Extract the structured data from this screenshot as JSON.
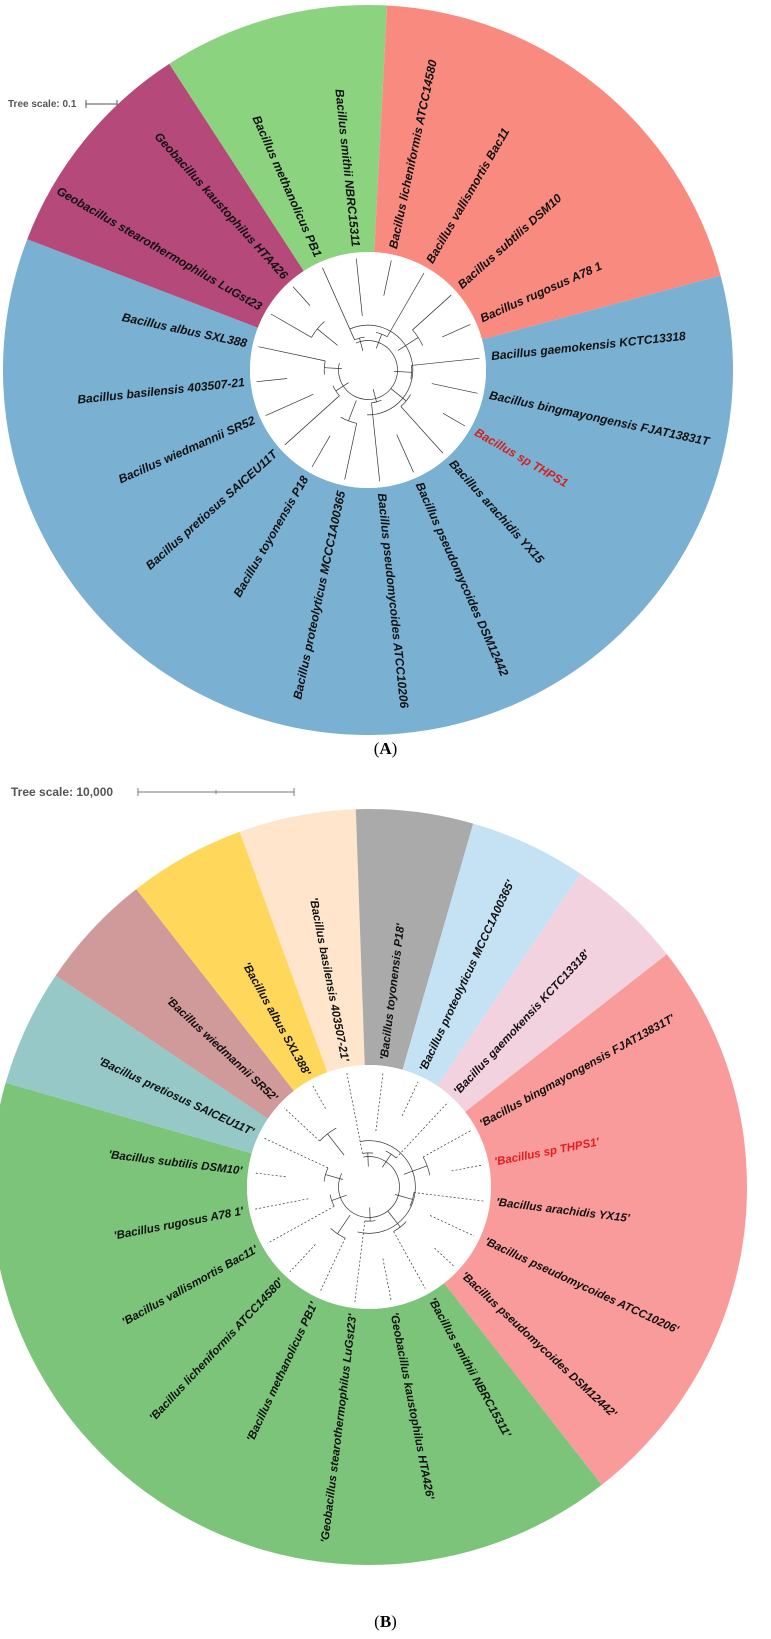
{
  "panels": [
    {
      "id": "A",
      "caption_open": "(",
      "caption_letter": "A",
      "caption_close": ")",
      "scale_label": "Tree scale: 0.1",
      "sectors": [
        {
          "color": "#8cd37f",
          "tips": [
            {
              "label": "Bacillus methanolicus PB1",
              "color": "#111111"
            },
            {
              "label": "Bacillus smithii NBRC15311",
              "color": "#111111"
            }
          ]
        },
        {
          "color": "#f98a80",
          "tips": [
            {
              "label": "Bacillus licheniformis ATCC14580",
              "color": "#111111"
            },
            {
              "label": "Bacillus vallismortis Bac11",
              "color": "#111111"
            },
            {
              "label": "Bacillus subtilis DSM10",
              "color": "#111111"
            },
            {
              "label": "Bacillus rugosus A78 1",
              "color": "#111111"
            }
          ]
        },
        {
          "color": "#7ab0d1",
          "tips": [
            {
              "label": "Bacillus gaemokensis KCTC13318",
              "color": "#111111"
            },
            {
              "label": "Bacillus bingmayongensis FJAT13831T",
              "color": "#111111"
            },
            {
              "label": "Bacillus sp THPS1",
              "color": "#d42020"
            },
            {
              "label": "Bacillus arachidis YX15",
              "color": "#111111"
            },
            {
              "label": "Bacillus pseudomycoides DSM12442",
              "color": "#111111"
            },
            {
              "label": "Bacillus pseudomycoides ATCC10206",
              "color": "#111111"
            },
            {
              "label": "Bacillus proteolyticus MCCC1A00365",
              "color": "#111111"
            },
            {
              "label": "Bacillus toyonensis P18",
              "color": "#111111"
            },
            {
              "label": "Bacillus pretiosus SAICEU11T",
              "color": "#111111"
            },
            {
              "label": "Bacillus wiedmannii SR52",
              "color": "#111111"
            },
            {
              "label": "Bacillus basilensis 403507-21",
              "color": "#111111"
            },
            {
              "label": "Bacillus albus SXL388",
              "color": "#111111"
            }
          ]
        },
        {
          "color": "#b5497a",
          "tips": [
            {
              "label": "Geobacillus stearothermophilus LuGst23",
              "color": "#111111"
            },
            {
              "label": "Geobacillus kaustophilus HTA426",
              "color": "#111111"
            }
          ]
        }
      ]
    },
    {
      "id": "B",
      "caption_open": "(",
      "caption_letter": "B",
      "caption_close": ")",
      "scale_label": "Tree scale: 10,000",
      "sectors": [
        {
          "color": "#ffe5cc",
          "tips": [
            {
              "label": "'Bacillus basilensis 403507-21'",
              "color": "#111111"
            }
          ]
        },
        {
          "color": "#aaaaaa",
          "tips": [
            {
              "label": "'Bacillus toyonensis P18'",
              "color": "#111111"
            }
          ]
        },
        {
          "color": "#c5e1f4",
          "tips": [
            {
              "label": "'Bacillus proteolyticus MCCC1A00365'",
              "color": "#111111"
            }
          ]
        },
        {
          "color": "#f3d2df",
          "tips": [
            {
              "label": "'Bacillus gaemokensis KCTC13318'",
              "color": "#111111"
            }
          ]
        },
        {
          "color": "#f99b9b",
          "tips": [
            {
              "label": "'Bacillus bingmayongensis FJAT13831T'",
              "color": "#111111"
            },
            {
              "label": "'Bacillus sp THPS1'",
              "color": "#e21d1d"
            },
            {
              "label": "'Bacillus arachidis YX15'",
              "color": "#111111"
            },
            {
              "label": "'Bacillus pseudomycoides ATCC10206'",
              "color": "#111111"
            },
            {
              "label": "'Bacillus pseudomycoides DSM12442'",
              "color": "#111111"
            }
          ]
        },
        {
          "color": "#7cc47a",
          "tips": [
            {
              "label": "'Bacillus smithii NBRC15311'",
              "color": "#111111"
            },
            {
              "label": "'Geobacillus kaustophilus HTA426'",
              "color": "#111111"
            },
            {
              "label": "'Geobacillus stearothermophilus LuGst23'",
              "color": "#111111"
            },
            {
              "label": "'Bacillus methanolicus PB1'",
              "color": "#111111"
            },
            {
              "label": "'Bacillus licheniformis ATCC14580'",
              "color": "#111111"
            },
            {
              "label": "'Bacillus vallismortis Bac11'",
              "color": "#111111"
            },
            {
              "label": "'Bacillus rugosus A78 1'",
              "color": "#111111"
            },
            {
              "label": "'Bacillus subtilis DSM10'",
              "color": "#111111"
            }
          ]
        },
        {
          "color": "#96c8c8",
          "tips": [
            {
              "label": "'Bacillus pretiosus SAICEU11T'",
              "color": "#111111"
            }
          ]
        },
        {
          "color": "#d09a9a",
          "tips": [
            {
              "label": "'Bacillus wiedmannii SR52'",
              "color": "#111111"
            }
          ]
        },
        {
          "color": "#ffd75a",
          "tips": [
            {
              "label": "'Bacillus albus SXL388'",
              "color": "#111111"
            }
          ]
        }
      ]
    }
  ]
}
